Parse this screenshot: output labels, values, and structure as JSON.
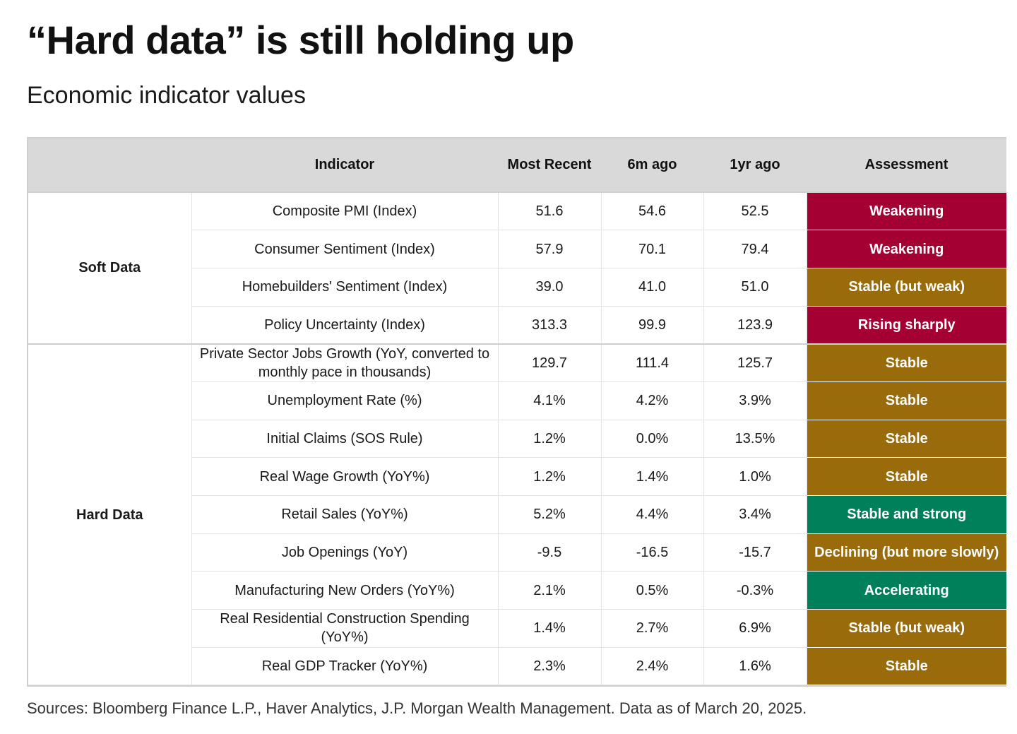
{
  "title": "“Hard data” is still holding up",
  "subtitle": "Economic indicator values",
  "sources": "Sources: Bloomberg Finance L.P., Haver Analytics, J.P. Morgan Wealth Management. Data as of March 20, 2025.",
  "colors": {
    "weakening": "#a50034",
    "stable": "#9a6b0a",
    "strong": "#00805a",
    "header_bg": "#d9d9d9"
  },
  "chart_data": {
    "type": "table",
    "title": "“Hard data” is still holding up",
    "subtitle": "Economic indicator values",
    "columns": [
      "",
      "Indicator",
      "Most Recent",
      "6m ago",
      "1yr ago",
      "Assessment"
    ],
    "groups": [
      {
        "name": "Soft Data",
        "rows": [
          {
            "indicator": "Composite PMI (Index)",
            "most_recent": "51.6",
            "six_m_ago": "54.6",
            "one_yr_ago": "52.5",
            "assessment": "Weakening",
            "color": "#a50034"
          },
          {
            "indicator": "Consumer Sentiment (Index)",
            "most_recent": "57.9",
            "six_m_ago": "70.1",
            "one_yr_ago": "79.4",
            "assessment": "Weakening",
            "color": "#a50034"
          },
          {
            "indicator": "Homebuilders' Sentiment (Index)",
            "most_recent": "39.0",
            "six_m_ago": "41.0",
            "one_yr_ago": "51.0",
            "assessment": "Stable (but weak)",
            "color": "#9a6b0a"
          },
          {
            "indicator": "Policy Uncertainty (Index)",
            "most_recent": "313.3",
            "six_m_ago": "99.9",
            "one_yr_ago": "123.9",
            "assessment": "Rising sharply",
            "color": "#a50034"
          }
        ]
      },
      {
        "name": "Hard Data",
        "rows": [
          {
            "indicator": "Private Sector Jobs Growth (YoY, converted to monthly pace in thousands)",
            "most_recent": "129.7",
            "six_m_ago": "111.4",
            "one_yr_ago": "125.7",
            "assessment": "Stable",
            "color": "#9a6b0a"
          },
          {
            "indicator": "Unemployment Rate (%)",
            "most_recent": "4.1%",
            "six_m_ago": "4.2%",
            "one_yr_ago": "3.9%",
            "assessment": "Stable",
            "color": "#9a6b0a"
          },
          {
            "indicator": "Initial Claims (SOS Rule)",
            "most_recent": "1.2%",
            "six_m_ago": "0.0%",
            "one_yr_ago": "13.5%",
            "assessment": "Stable",
            "color": "#9a6b0a"
          },
          {
            "indicator": "Real Wage Growth (YoY%)",
            "most_recent": "1.2%",
            "six_m_ago": "1.4%",
            "one_yr_ago": "1.0%",
            "assessment": "Stable",
            "color": "#9a6b0a"
          },
          {
            "indicator": "Retail Sales (YoY%)",
            "most_recent": "5.2%",
            "six_m_ago": "4.4%",
            "one_yr_ago": "3.4%",
            "assessment": "Stable and strong",
            "color": "#00805a"
          },
          {
            "indicator": "Job Openings (YoY)",
            "most_recent": "-9.5",
            "six_m_ago": "-16.5",
            "one_yr_ago": "-15.7",
            "assessment": "Declining (but more slowly)",
            "color": "#9a6b0a"
          },
          {
            "indicator": "Manufacturing New Orders (YoY%)",
            "most_recent": "2.1%",
            "six_m_ago": "0.5%",
            "one_yr_ago": "-0.3%",
            "assessment": "Accelerating",
            "color": "#00805a"
          },
          {
            "indicator": "Real Residential Construction Spending (YoY%)",
            "most_recent": "1.4%",
            "six_m_ago": "2.7%",
            "one_yr_ago": "6.9%",
            "assessment": "Stable (but weak)",
            "color": "#9a6b0a"
          },
          {
            "indicator": "Real GDP Tracker (YoY%)",
            "most_recent": "2.3%",
            "six_m_ago": "2.4%",
            "one_yr_ago": "1.6%",
            "assessment": "Stable",
            "color": "#9a6b0a"
          }
        ]
      }
    ]
  }
}
